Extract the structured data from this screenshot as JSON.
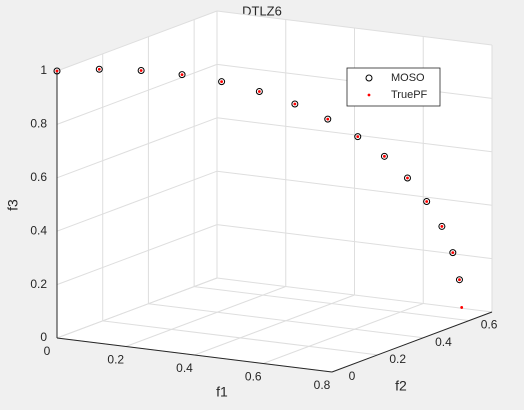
{
  "chart_data": {
    "type": "scatter3d",
    "title": "DTLZ6",
    "xlabel": "f1",
    "ylabel": "f2",
    "zlabel": "f3",
    "xlim": [
      0,
      0.8
    ],
    "ylim": [
      0,
      0.7
    ],
    "zlim": [
      0,
      1
    ],
    "xticks": [
      0,
      0.2,
      0.4,
      0.6,
      0.8
    ],
    "yticks": [
      0,
      0.2,
      0.4,
      0.6
    ],
    "zticks": [
      0,
      0.2,
      0.4,
      0.6,
      0.8,
      1
    ],
    "grid": true,
    "legend": "northeast",
    "series": [
      {
        "name": "MOSO",
        "color": "#000000",
        "marker": "circle",
        "x": [
          0,
          0.0739,
          0.147,
          0.2185,
          0.2876,
          0.3536,
          0.4156,
          0.4731,
          0.5255,
          0.5721,
          0.6124,
          0.6459,
          0.6725,
          0.6916,
          0.7032
        ],
        "y": [
          0,
          0.0739,
          0.147,
          0.2185,
          0.2876,
          0.3536,
          0.4156,
          0.4731,
          0.5255,
          0.5721,
          0.6124,
          0.6459,
          0.6725,
          0.6916,
          0.7032
        ],
        "z": [
          1,
          0.9945,
          0.9781,
          0.9511,
          0.9135,
          0.866,
          0.809,
          0.7431,
          0.6691,
          0.5878,
          0.5,
          0.4067,
          0.309,
          0.2079,
          0.1045
        ]
      },
      {
        "name": "TruePF",
        "color": "#ff0000",
        "marker": "dot",
        "x": [
          0,
          0.0739,
          0.147,
          0.2185,
          0.2876,
          0.3536,
          0.4156,
          0.4731,
          0.5255,
          0.5721,
          0.6124,
          0.6459,
          0.6725,
          0.6916,
          0.7032,
          0.7071
        ],
        "y": [
          0,
          0.0739,
          0.147,
          0.2185,
          0.2876,
          0.3536,
          0.4156,
          0.4731,
          0.5255,
          0.5721,
          0.6124,
          0.6459,
          0.6725,
          0.6916,
          0.7032,
          0.7071
        ],
        "z": [
          1,
          0.9945,
          0.9781,
          0.9511,
          0.9135,
          0.866,
          0.809,
          0.7431,
          0.6691,
          0.5878,
          0.5,
          0.4067,
          0.309,
          0.2079,
          0.1045,
          0
        ]
      }
    ]
  }
}
